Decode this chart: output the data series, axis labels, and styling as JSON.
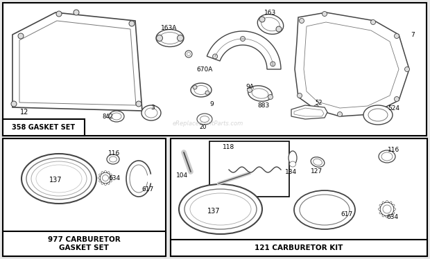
{
  "bg_color": "#e8e8e8",
  "panel_bg": "#ffffff",
  "gasket_set_label": "358 GASKET SET",
  "carb_gasket_label": "977 CARBURETOR\nGASKET SET",
  "carb_kit_label": "121 CARBURETOR KIT"
}
